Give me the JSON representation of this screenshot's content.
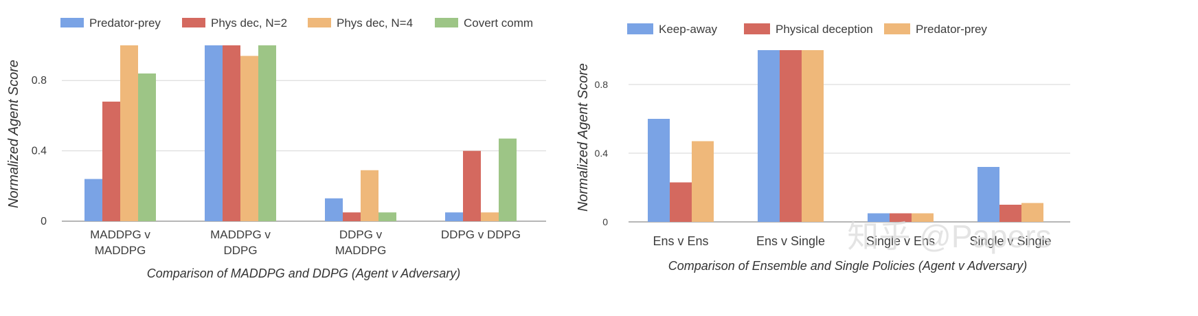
{
  "watermark": "知乎 @Papers",
  "chart_data": [
    {
      "type": "bar",
      "title": "",
      "xlabel": "Comparison of MADDPG and DDPG (Agent v Adversary)",
      "ylabel": "Normalized Agent Score",
      "categories": [
        [
          "MADDPG v",
          "MADDPG"
        ],
        [
          "MADDPG v",
          "DDPG"
        ],
        [
          "DDPG v",
          "MADDPG"
        ],
        [
          "DDPG v DDPG"
        ]
      ],
      "series": [
        {
          "name": "Predator-prey",
          "color": "#7aa3e5",
          "values": [
            0.24,
            1.0,
            0.13,
            0.05
          ]
        },
        {
          "name": "Phys dec, N=2",
          "color": "#d4695f",
          "values": [
            0.68,
            1.0,
            0.05,
            0.4
          ]
        },
        {
          "name": "Phys dec, N=4",
          "color": "#efb87a",
          "values": [
            1.0,
            0.94,
            0.29,
            0.05
          ]
        },
        {
          "name": "Covert comm",
          "color": "#9dc586",
          "values": [
            0.84,
            1.0,
            0.05,
            0.47
          ]
        }
      ],
      "ylim": [
        0,
        1.0
      ],
      "yticks": [
        0,
        0.4,
        0.8
      ],
      "ytick_labels": [
        "0",
        "0.4",
        "0.8"
      ],
      "grid": true,
      "legend": "top"
    },
    {
      "type": "bar",
      "title": "",
      "xlabel": "Comparison of Ensemble and Single Policies (Agent v Adversary)",
      "ylabel": "Normalized Agent Score",
      "categories": [
        [
          "Ens v Ens"
        ],
        [
          "Ens v Single"
        ],
        [
          "Single v Ens"
        ],
        [
          "Single v Single"
        ]
      ],
      "series": [
        {
          "name": "Keep-away",
          "color": "#7aa3e5",
          "values": [
            0.6,
            1.0,
            0.05,
            0.32
          ]
        },
        {
          "name": "Physical deception",
          "color": "#d4695f",
          "values": [
            0.23,
            1.0,
            0.05,
            0.1
          ]
        },
        {
          "name": "Predator-prey",
          "color": "#efb87a",
          "values": [
            0.47,
            1.0,
            0.05,
            0.11
          ]
        }
      ],
      "ylim": [
        0,
        1.0
      ],
      "yticks": [
        0,
        0.4,
        0.8
      ],
      "ytick_labels": [
        "0",
        "0.4",
        "0.8"
      ],
      "grid": true,
      "legend": "top"
    }
  ]
}
